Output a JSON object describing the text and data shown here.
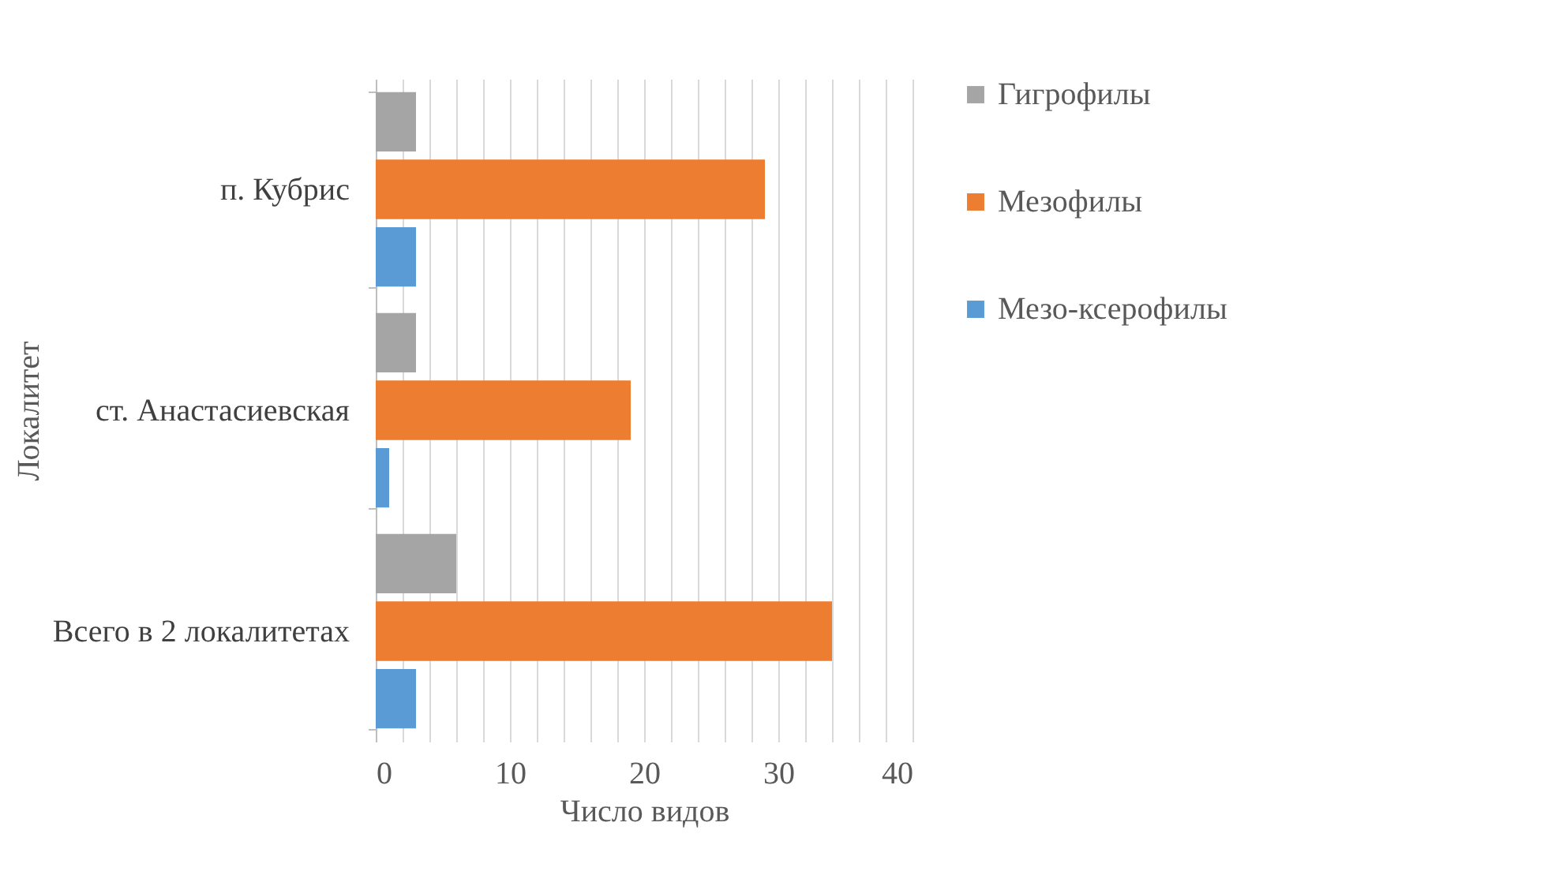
{
  "chart_data": {
    "type": "bar",
    "orientation": "horizontal",
    "xlabel": "Число видов",
    "ylabel": "Локалитет",
    "categories": [
      "п. Кубрис",
      "ст. Анастасиевская",
      "Всего в 2 локалитетах"
    ],
    "series": [
      {
        "name": "Гигрофилы",
        "color": "#a5a5a5",
        "values": [
          3,
          3,
          6
        ]
      },
      {
        "name": "Мезофилы",
        "color": "#ed7d31",
        "values": [
          29,
          19,
          34
        ]
      },
      {
        "name": "Мезо-ксерофилы",
        "color": "#5b9bd5",
        "values": [
          3,
          1,
          3
        ]
      }
    ],
    "xlim": [
      0,
      40
    ],
    "xticks": [
      0,
      {
        "value": 2,
        "label": null
      },
      {
        "value": 4,
        "label": null
      },
      {
        "value": 6,
        "label": null
      },
      {
        "value": 8,
        "label": null
      },
      10,
      {
        "value": 12,
        "label": null
      },
      {
        "value": 14,
        "label": null
      },
      {
        "value": 16,
        "label": null
      },
      {
        "value": 18,
        "label": null
      },
      20,
      {
        "value": 22,
        "label": null
      },
      {
        "value": 24,
        "label": null
      },
      {
        "value": 26,
        "label": null
      },
      {
        "value": 28,
        "label": null
      },
      30,
      {
        "value": 32,
        "label": null
      },
      {
        "value": 34,
        "label": null
      },
      {
        "value": 36,
        "label": null
      },
      {
        "value": 38,
        "label": null
      },
      40
    ],
    "grid": true,
    "legend": "right"
  }
}
